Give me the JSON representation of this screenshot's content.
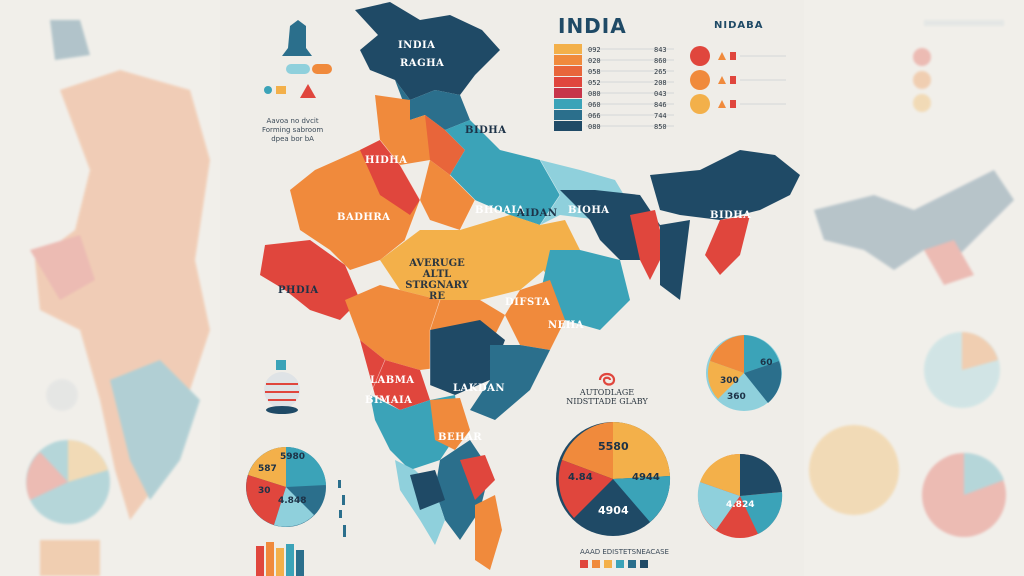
{
  "header": {
    "title": "INDIA",
    "subtitle": "NIDABA"
  },
  "map": {
    "labels": [
      "RAGHA",
      "INDIA",
      "HIDHA",
      "BADHRA",
      "BIDHA",
      "BHOAIA",
      "AIDAN",
      "BIOHA",
      "DIFSTA",
      "NEHA",
      "LABMA",
      "LAKDAN",
      "BEHAR",
      "BIMAIA",
      "PHDIA",
      "BIDHA"
    ],
    "center_text": [
      "AVERUGE",
      "ALTL",
      "STRGNARY",
      "RE"
    ]
  },
  "legend": {
    "values": [
      "092",
      "020",
      "058",
      "052",
      "080",
      "060",
      "066",
      "080"
    ],
    "right_values": [
      "843",
      "860",
      "265",
      "208",
      "043",
      "846",
      "744",
      "850"
    ]
  },
  "icon_legend": {
    "caption": [
      "Aavoa no dvcit",
      "Forming sabroom",
      "dpea bor bA"
    ]
  },
  "pies": {
    "big_values": [
      "5580",
      "4.84",
      "4944",
      "4904"
    ],
    "big_title": [
      "AUTODLAGE",
      "NIDSTTADE GLABY"
    ],
    "small_left_values": [
      "5980",
      "587",
      "30",
      "4.848"
    ],
    "small_right_top_values": [
      "300",
      "60",
      "360"
    ],
    "small_right_bottom_values": [
      "4.824"
    ],
    "footer": "AAAD EDISTETSNEACASE"
  },
  "colors": {
    "navy": "#1e4a66",
    "teal": "#3ba3b8",
    "lightblue": "#8fd0dc",
    "orange": "#f08a3c",
    "red": "#e0463d",
    "yellow": "#f3b04a"
  }
}
